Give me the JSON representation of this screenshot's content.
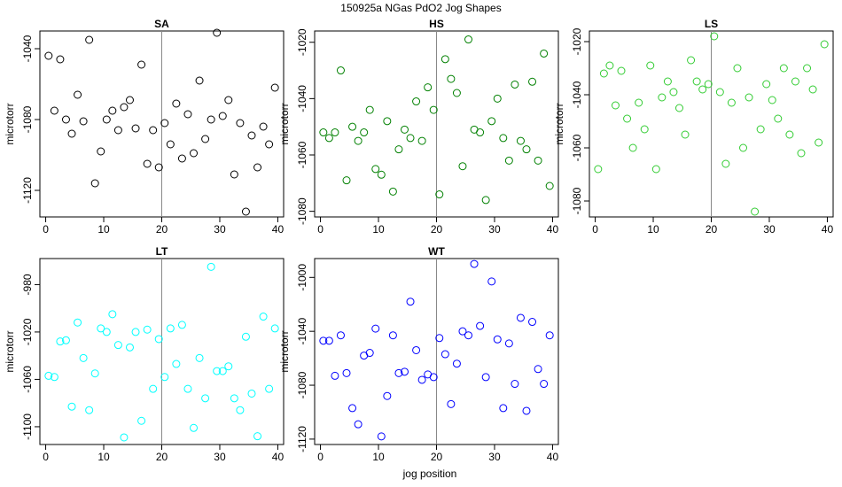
{
  "figure": {
    "title": "150925a   NGas PdO2 Jog Shapes",
    "xlabel": "jog position",
    "ylabel": "microtorr"
  },
  "chart_data": [
    {
      "type": "scatter",
      "title": "SA",
      "color": "#000000",
      "xlim": [
        -1,
        41
      ],
      "ylim": [
        -1135,
        -1030
      ],
      "yticks": [
        -1040,
        -1080,
        -1120
      ],
      "xticks": [
        0,
        10,
        20,
        30,
        40
      ],
      "vline_x": 20,
      "x": [
        0.5,
        1.5,
        2.5,
        3.5,
        4.5,
        5.5,
        6.5,
        7.5,
        8.5,
        9.5,
        10.5,
        11.5,
        12.5,
        13.5,
        14.5,
        15.5,
        16.5,
        17.5,
        18.5,
        19.5,
        20.5,
        21.5,
        22.5,
        23.5,
        24.5,
        25.5,
        26.5,
        27.5,
        28.5,
        29.5,
        30.5,
        31.5,
        32.5,
        33.5,
        34.5,
        35.5,
        36.5,
        37.5,
        38.5,
        39.5
      ],
      "y": [
        -1044,
        -1075,
        -1046,
        -1080,
        -1088,
        -1066,
        -1081,
        -1035,
        -1116,
        -1098,
        -1080,
        -1075,
        -1086,
        -1073,
        -1069,
        -1085,
        -1049,
        -1105,
        -1086,
        -1107,
        -1082,
        -1094,
        -1071,
        -1102,
        -1077,
        -1099,
        -1058,
        -1091,
        -1080,
        -1031,
        -1078,
        -1069,
        -1111,
        -1082,
        -1132,
        -1089,
        -1107,
        -1084,
        -1094,
        -1062
      ]
    },
    {
      "type": "scatter",
      "title": "HS",
      "color": "#008000",
      "xlim": [
        -1,
        41
      ],
      "ylim": [
        -1082,
        -1016
      ],
      "yticks": [
        -1020,
        -1040,
        -1060,
        -1080
      ],
      "xticks": [
        0,
        10,
        20,
        30,
        40
      ],
      "vline_x": 20,
      "x": [
        0.5,
        1.5,
        2.5,
        3.5,
        4.5,
        5.5,
        6.5,
        7.5,
        8.5,
        9.5,
        10.5,
        11.5,
        12.5,
        13.5,
        14.5,
        15.5,
        16.5,
        17.5,
        18.5,
        19.5,
        20.5,
        21.5,
        22.5,
        23.5,
        24.5,
        25.5,
        26.5,
        27.5,
        28.5,
        29.5,
        30.5,
        31.5,
        32.5,
        33.5,
        34.5,
        35.5,
        36.5,
        37.5,
        38.5,
        39.5
      ],
      "y": [
        -1052,
        -1054,
        -1052,
        -1030,
        -1069,
        -1050,
        -1055,
        -1052,
        -1044,
        -1065,
        -1067,
        -1048,
        -1073,
        -1058,
        -1051,
        -1054,
        -1041,
        -1055,
        -1036,
        -1044,
        -1074,
        -1026,
        -1033,
        -1038,
        -1064,
        -1019,
        -1051,
        -1052,
        -1076,
        -1048,
        -1040,
        -1054,
        -1062,
        -1035,
        -1055,
        -1058,
        -1034,
        -1062,
        -1024,
        -1071
      ]
    },
    {
      "type": "scatter",
      "title": "LS",
      "color": "#33cc33",
      "xlim": [
        -1,
        41
      ],
      "ylim": [
        -1086,
        -1016
      ],
      "yticks": [
        -1020,
        -1040,
        -1060,
        -1080
      ],
      "xticks": [
        0,
        10,
        20,
        30,
        40
      ],
      "vline_x": 20,
      "x": [
        0.5,
        1.5,
        2.5,
        3.5,
        4.5,
        5.5,
        6.5,
        7.5,
        8.5,
        9.5,
        10.5,
        11.5,
        12.5,
        13.5,
        14.5,
        15.5,
        16.5,
        17.5,
        18.5,
        19.5,
        20.5,
        21.5,
        22.5,
        23.5,
        24.5,
        25.5,
        26.5,
        27.5,
        28.5,
        29.5,
        30.5,
        31.5,
        32.5,
        33.5,
        34.5,
        35.5,
        36.5,
        37.5,
        38.5,
        39.5
      ],
      "y": [
        -1068,
        -1032,
        -1029,
        -1044,
        -1031,
        -1049,
        -1060,
        -1043,
        -1053,
        -1029,
        -1068,
        -1041,
        -1035,
        -1039,
        -1045,
        -1055,
        -1027,
        -1035,
        -1038,
        -1036,
        -1018,
        -1039,
        -1066,
        -1043,
        -1030,
        -1060,
        -1041,
        -1084,
        -1053,
        -1036,
        -1042,
        -1049,
        -1030,
        -1055,
        -1035,
        -1062,
        -1030,
        -1038,
        -1058,
        -1021
      ]
    },
    {
      "type": "scatter",
      "title": "LT",
      "color": "#00ffff",
      "xlim": [
        -1,
        41
      ],
      "ylim": [
        -1115,
        -958
      ],
      "yticks": [
        -980,
        -1020,
        -1060,
        -1100
      ],
      "xticks": [
        0,
        10,
        20,
        30,
        40
      ],
      "vline_x": 20,
      "x": [
        0.5,
        1.5,
        2.5,
        3.5,
        4.5,
        5.5,
        6.5,
        7.5,
        8.5,
        9.5,
        10.5,
        11.5,
        12.5,
        13.5,
        14.5,
        15.5,
        16.5,
        17.5,
        18.5,
        19.5,
        20.5,
        21.5,
        22.5,
        23.5,
        24.5,
        25.5,
        26.5,
        27.5,
        28.5,
        29.5,
        30.5,
        31.5,
        32.5,
        33.5,
        34.5,
        35.5,
        36.5,
        37.5,
        38.5,
        39.5
      ],
      "y": [
        -1057,
        -1058,
        -1028,
        -1027,
        -1083,
        -1012,
        -1042,
        -1086,
        -1055,
        -1017,
        -1020,
        -1005,
        -1031,
        -1109,
        -1033,
        -1020,
        -1095,
        -1018,
        -1068,
        -1026,
        -1058,
        -1017,
        -1047,
        -1014,
        -1068,
        -1101,
        -1042,
        -1076,
        -965,
        -1053,
        -1053,
        -1049,
        -1076,
        -1086,
        -1024,
        -1072,
        -1108,
        -1007,
        -1068,
        -1017
      ]
    },
    {
      "type": "scatter",
      "title": "WT",
      "color": "#0000ff",
      "xlim": [
        -1,
        41
      ],
      "ylim": [
        -1124,
        -986
      ],
      "yticks": [
        -1000,
        -1040,
        -1080,
        -1120
      ],
      "xticks": [
        0,
        10,
        20,
        30,
        40
      ],
      "vline_x": 20,
      "x": [
        0.5,
        1.5,
        2.5,
        3.5,
        4.5,
        5.5,
        6.5,
        7.5,
        8.5,
        9.5,
        10.5,
        11.5,
        12.5,
        13.5,
        14.5,
        15.5,
        16.5,
        17.5,
        18.5,
        19.5,
        20.5,
        21.5,
        22.5,
        23.5,
        24.5,
        25.5,
        26.5,
        27.5,
        28.5,
        29.5,
        30.5,
        31.5,
        32.5,
        33.5,
        34.5,
        35.5,
        36.5,
        37.5,
        38.5,
        39.5
      ],
      "y": [
        -1047,
        -1047,
        -1073,
        -1043,
        -1071,
        -1097,
        -1109,
        -1058,
        -1056,
        -1038,
        -1118,
        -1088,
        -1043,
        -1071,
        -1070,
        -1018,
        -1054,
        -1076,
        -1072,
        -1074,
        -1045,
        -1057,
        -1094,
        -1064,
        -1040,
        -1043,
        -990,
        -1036,
        -1074,
        -1003,
        -1046,
        -1097,
        -1049,
        -1079,
        -1030,
        -1099,
        -1033,
        -1068,
        -1079,
        -1043
      ]
    }
  ]
}
